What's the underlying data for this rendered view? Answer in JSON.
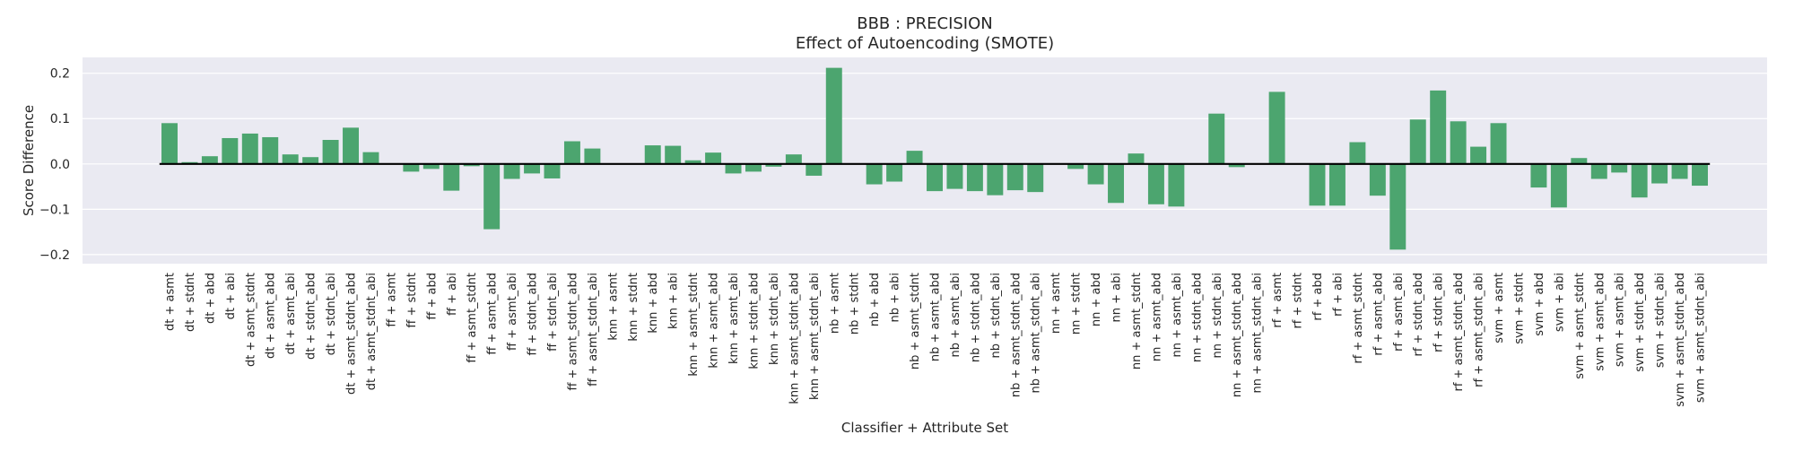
{
  "chart_data": {
    "type": "bar",
    "title": "BBB : PRECISION",
    "subtitle": "Effect of Autoencoding (SMOTE)",
    "xlabel": "Classifier + Attribute Set",
    "ylabel": "Score Difference",
    "ylim": [
      -0.22,
      0.235
    ],
    "yticks": [
      -0.2,
      -0.1,
      0.0,
      0.1,
      0.2
    ],
    "ytick_labels": [
      "−0.2",
      "−0.1",
      "0.0",
      "0.1",
      "0.2"
    ],
    "grid": true,
    "colors": {
      "bar": "#4ca56f",
      "background": "#eaeaf2",
      "grid": "#ffffff",
      "zero_line": "#000000"
    },
    "categories": [
      "dt + asmt",
      "dt + stdnt",
      "dt + abd",
      "dt + abi",
      "dt + asmt_stdnt",
      "dt + asmt_abd",
      "dt + asmt_abi",
      "dt + stdnt_abd",
      "dt + stdnt_abi",
      "dt + asmt_stdnt_abd",
      "dt + asmt_stdnt_abi",
      "ff + asmt",
      "ff + stdnt",
      "ff + abd",
      "ff + abi",
      "ff + asmt_stdnt",
      "ff + asmt_abd",
      "ff + asmt_abi",
      "ff + stdnt_abd",
      "ff + stdnt_abi",
      "ff + asmt_stdnt_abd",
      "ff + asmt_stdnt_abi",
      "knn + asmt",
      "knn + stdnt",
      "knn + abd",
      "knn + abi",
      "knn + asmt_stdnt",
      "knn + asmt_abd",
      "knn + asmt_abi",
      "knn + stdnt_abd",
      "knn + stdnt_abi",
      "knn + asmt_stdnt_abd",
      "knn + asmt_stdnt_abi",
      "nb + asmt",
      "nb + stdnt",
      "nb + abd",
      "nb + abi",
      "nb + asmt_stdnt",
      "nb + asmt_abd",
      "nb + asmt_abi",
      "nb + stdnt_abd",
      "nb + stdnt_abi",
      "nb + asmt_stdnt_abd",
      "nb + asmt_stdnt_abi",
      "nn + asmt",
      "nn + stdnt",
      "nn + abd",
      "nn + abi",
      "nn + asmt_stdnt",
      "nn + asmt_abd",
      "nn + asmt_abi",
      "nn + stdnt_abd",
      "nn + stdnt_abi",
      "nn + asmt_stdnt_abd",
      "nn + asmt_stdnt_abi",
      "rf + asmt",
      "rf + stdnt",
      "rf + abd",
      "rf + abi",
      "rf + asmt_stdnt",
      "rf + asmt_abd",
      "rf + asmt_abi",
      "rf + stdnt_abd",
      "rf + stdnt_abi",
      "rf + asmt_stdnt_abd",
      "rf + asmt_stdnt_abi",
      "svm + asmt",
      "svm + stdnt",
      "svm + abd",
      "svm + abi",
      "svm + asmt_stdnt",
      "svm + asmt_abd",
      "svm + asmt_abi",
      "svm + stdnt_abd",
      "svm + stdnt_abi",
      "svm + asmt_stdnt_abd",
      "svm + asmt_stdnt_abi"
    ],
    "values": [
      0.09,
      0.004,
      0.017,
      0.057,
      0.067,
      0.059,
      0.021,
      0.015,
      0.053,
      0.08,
      0.026,
      0.0,
      -0.017,
      -0.011,
      -0.059,
      -0.005,
      -0.144,
      -0.033,
      -0.021,
      -0.032,
      0.05,
      0.034,
      0.0,
      0.0,
      0.041,
      0.04,
      0.008,
      0.025,
      -0.021,
      -0.017,
      -0.006,
      0.021,
      -0.026,
      0.212,
      0.0,
      -0.045,
      -0.039,
      0.029,
      -0.06,
      -0.055,
      -0.06,
      -0.069,
      -0.058,
      -0.062,
      0.0,
      -0.011,
      -0.045,
      -0.086,
      0.023,
      -0.089,
      -0.094,
      0.0,
      0.111,
      -0.007,
      0.0,
      0.159,
      0.0,
      -0.092,
      -0.092,
      0.048,
      -0.07,
      -0.189,
      0.098,
      0.162,
      0.094,
      0.038,
      0.09,
      0.0,
      -0.052,
      -0.096,
      0.013,
      -0.033,
      -0.019,
      -0.074,
      -0.043,
      -0.033,
      -0.048
    ]
  }
}
